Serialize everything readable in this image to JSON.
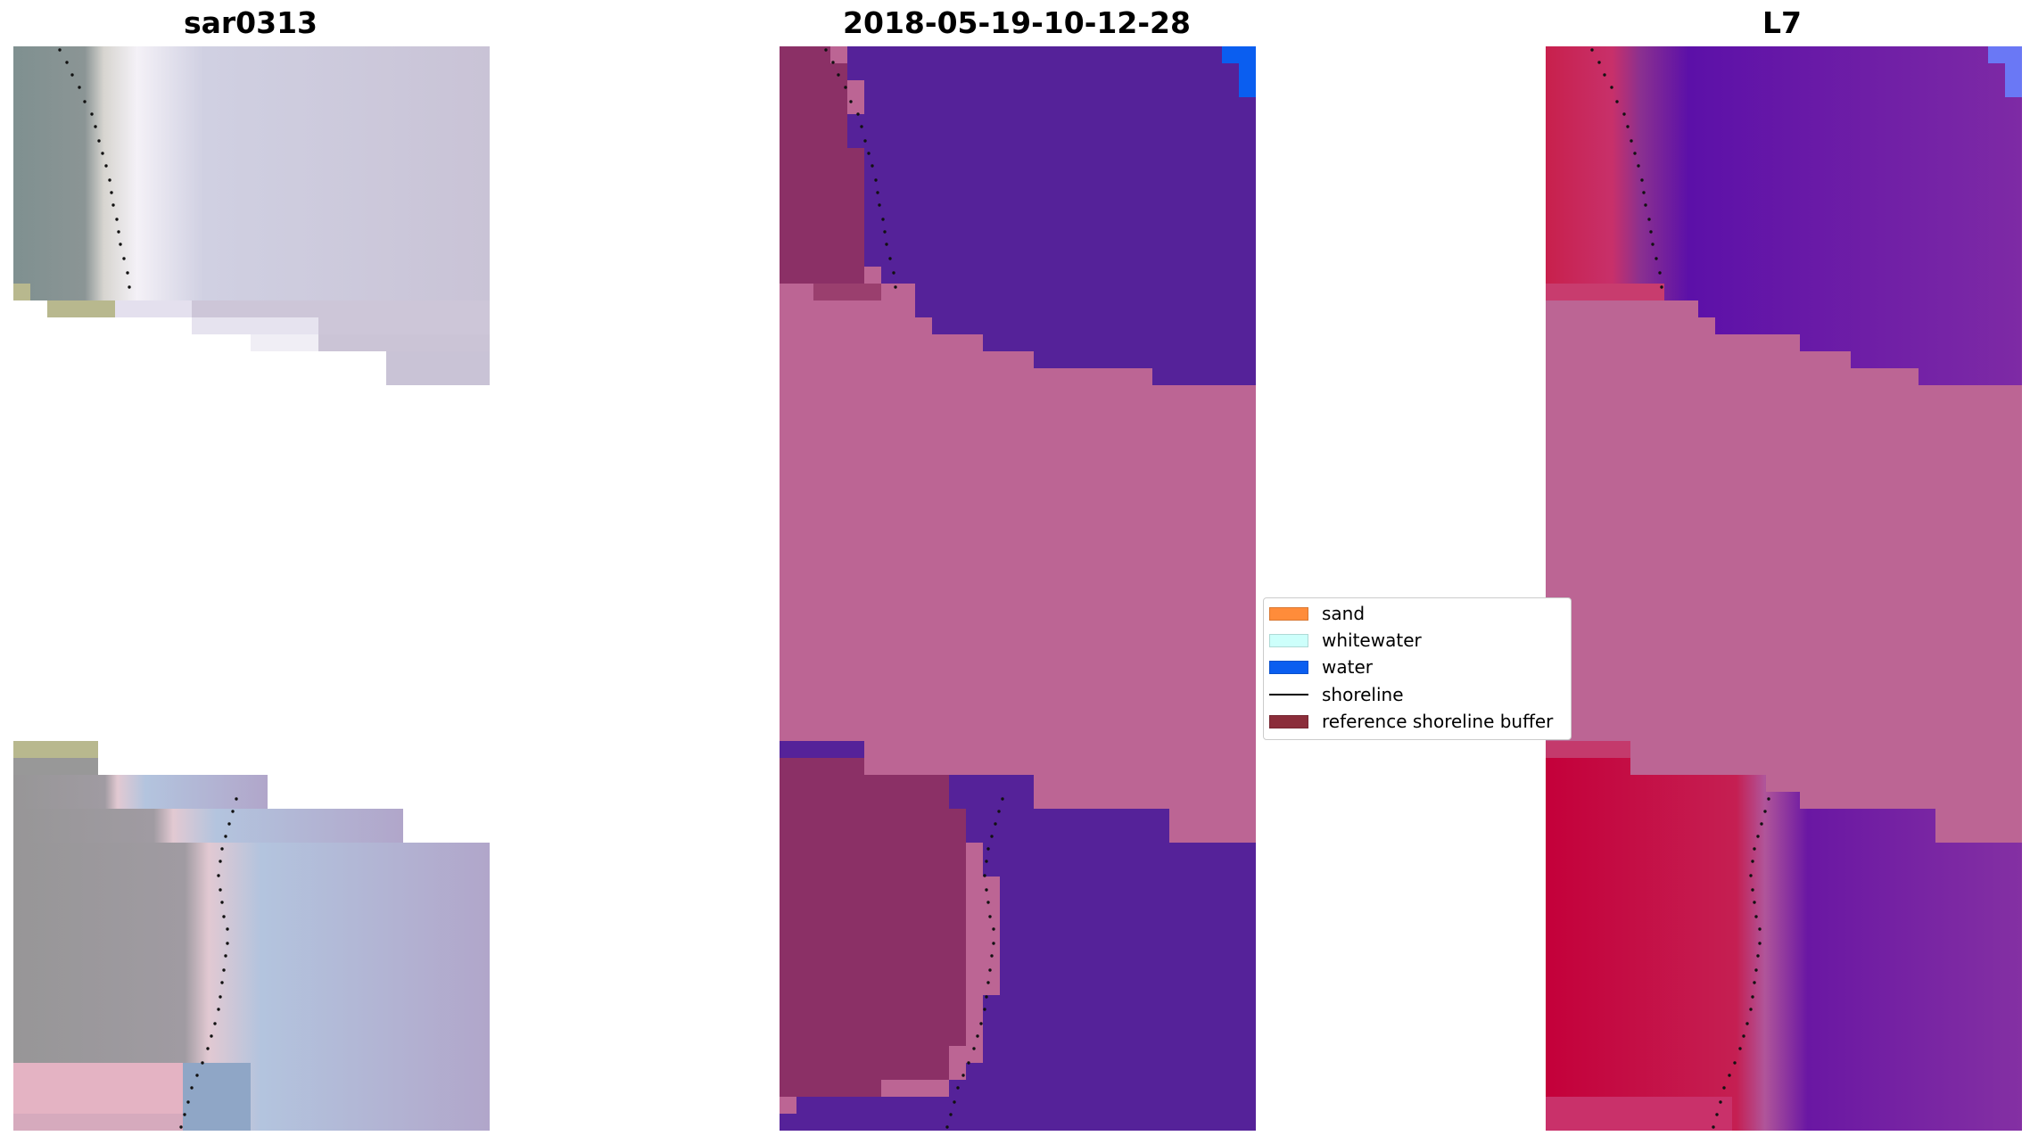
{
  "panels": [
    {
      "title": "sar0313"
    },
    {
      "title": "2018-05-19-10-12-28"
    },
    {
      "title": "L7"
    }
  ],
  "legend": {
    "items": [
      {
        "label": "sand",
        "color": "#ff8c3a"
      },
      {
        "label": "whitewater",
        "color": "#cdfffb"
      },
      {
        "label": "water",
        "color": "#0a5ef0"
      },
      {
        "label": "shoreline",
        "color": "#000000"
      },
      {
        "label": "reference shoreline buffer",
        "color": "#8b2d3a"
      }
    ]
  },
  "colors": {
    "buffer_fill": "#bc6594",
    "class_water": "#552299",
    "class_land": "#8b3066",
    "rgb_water": "#c8c0d8",
    "rgb_land": "#7f9090",
    "rgb_sand": "#b8b88e",
    "l7_land": "#c8204c",
    "l7_water": "#8020a0",
    "l7_corner": "#6a78f5",
    "shoreline_dots": "#111111"
  }
}
